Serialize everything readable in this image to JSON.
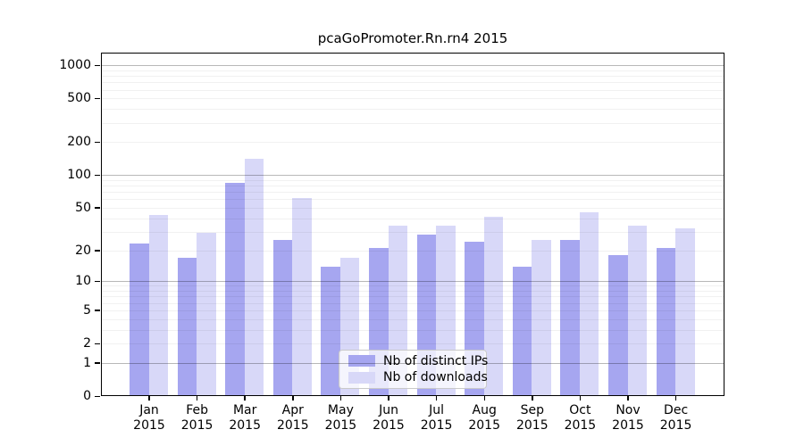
{
  "chart_data": {
    "type": "bar",
    "title": "pcaGoPromoter.Rn.rn4 2015",
    "scale": "log1p",
    "categories": [
      "Jan",
      "Feb",
      "Mar",
      "Apr",
      "May",
      "Jun",
      "Jul",
      "Aug",
      "Sep",
      "Oct",
      "Nov",
      "Dec"
    ],
    "year": "2015",
    "series": [
      {
        "name": "Nb of distinct IPs",
        "color": "#a6a6f0",
        "values": [
          23,
          17,
          85,
          25,
          14,
          21,
          28,
          24,
          14,
          25,
          18,
          21
        ]
      },
      {
        "name": "Nb of downloads",
        "color": "#d8d8f8",
        "values": [
          43,
          29,
          140,
          61,
          17,
          34,
          34,
          41,
          25,
          45,
          34,
          32
        ]
      }
    ],
    "yticks": [
      0,
      1,
      2,
      5,
      10,
      20,
      50,
      100,
      200,
      500,
      1000
    ],
    "ylim": [
      0,
      1300
    ],
    "grid": {
      "major_decades": [
        1,
        10,
        100,
        1000
      ],
      "minor_multiples": [
        2,
        3,
        4,
        5,
        6,
        7,
        8,
        9
      ],
      "minor_decades": [
        1,
        10,
        100
      ]
    },
    "legend_position": "bottom-center-inside",
    "colors": {
      "grid_major": "#b8b8b8",
      "grid_minor": "#f0f0f0",
      "axis": "#000000",
      "background": "#ffffff"
    }
  }
}
